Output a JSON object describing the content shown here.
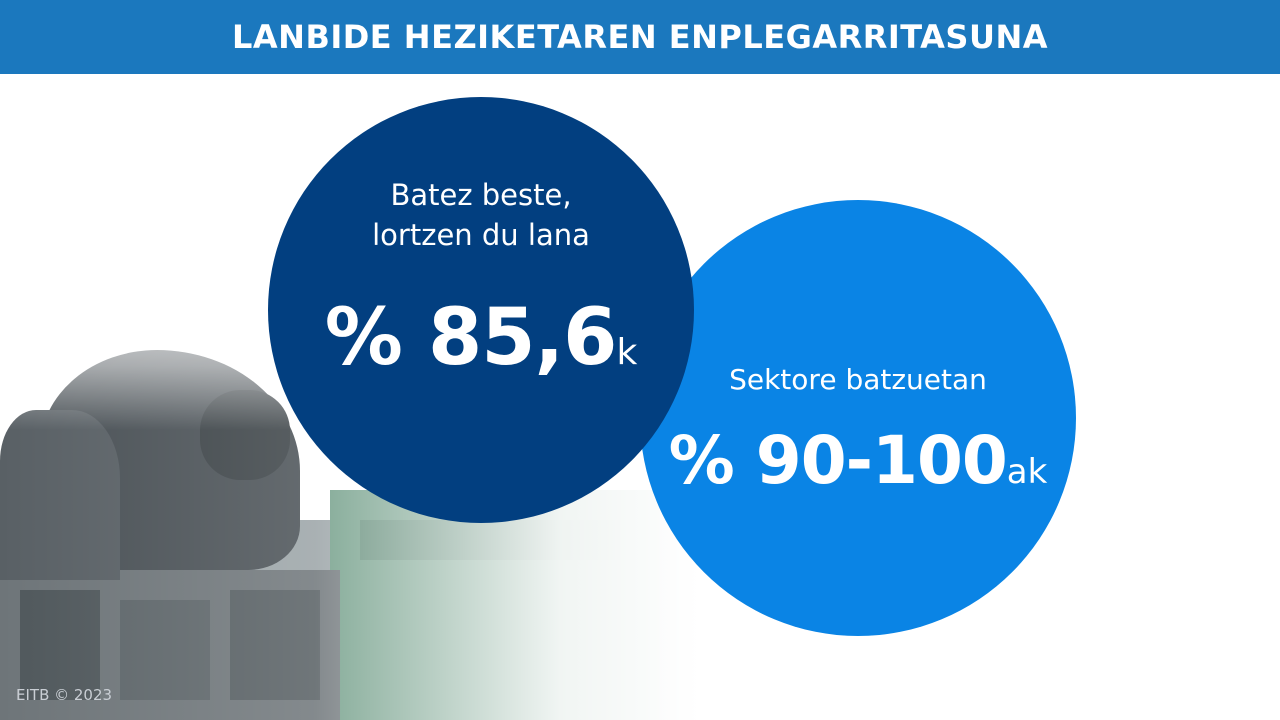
{
  "header": {
    "title": "LANBIDE HEZIKETAREN ENPLEGARRITASUNA"
  },
  "stat_primary": {
    "caption_line1": "Batez beste,",
    "caption_line2": "lortzen du lana",
    "value": "% 85,6",
    "suffix": "k"
  },
  "stat_secondary": {
    "caption": "Sektore batzuetan",
    "value": "% 90-100",
    "suffix": "ak"
  },
  "footer": {
    "credit": "EITB © 2023"
  },
  "colors": {
    "header_band": "#1b78be",
    "circle_dark": "#023f80",
    "circle_light": "#0a84e5"
  }
}
